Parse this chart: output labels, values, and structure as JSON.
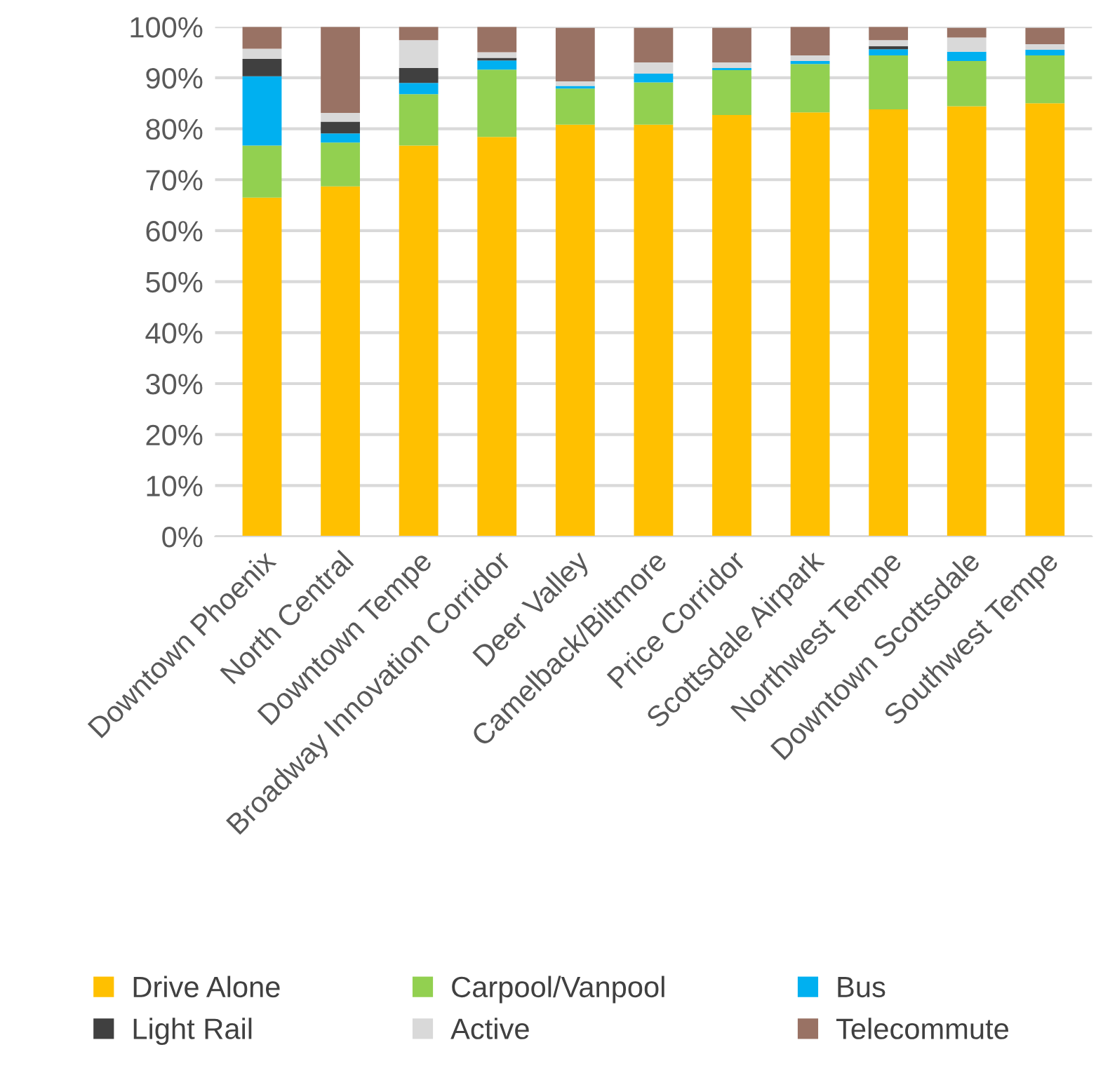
{
  "chart_data": {
    "type": "bar",
    "stacked": true,
    "categories": [
      "Downtown Phoenix",
      "North Central",
      "Downtown Tempe",
      "Broadway Innovation Corridor",
      "Deer Valley",
      "Camelback/Biltmore",
      "Price Corridor",
      "Scottsdale Airpark",
      "Northwest Tempe",
      "Downtown Scottsdale",
      "Southwest Tempe"
    ],
    "series": [
      {
        "name": "Drive Alone",
        "color": "#ffc000",
        "values": [
          66.5,
          68.7,
          76.7,
          78.4,
          80.8,
          80.8,
          82.7,
          83.2,
          83.8,
          84.4,
          85.0
        ]
      },
      {
        "name": "Carpool/Vanpool",
        "color": "#92d050",
        "values": [
          10.2,
          8.6,
          10.1,
          13.2,
          7.1,
          8.3,
          8.8,
          9.5,
          10.6,
          8.9,
          9.4
        ]
      },
      {
        "name": "Bus",
        "color": "#00b0f0",
        "values": [
          13.6,
          1.8,
          2.2,
          1.8,
          0.5,
          1.7,
          0.4,
          0.6,
          1.2,
          1.8,
          1.1
        ]
      },
      {
        "name": "Light Rail",
        "color": "#404040",
        "values": [
          3.4,
          2.3,
          2.9,
          0.5,
          null,
          null,
          null,
          null,
          0.6,
          null,
          null
        ]
      },
      {
        "name": "Active",
        "color": "#d9d9d9",
        "values": [
          2.0,
          1.7,
          5.5,
          1.1,
          0.9,
          2.2,
          1.1,
          1.1,
          1.2,
          2.8,
          1.1
        ]
      },
      {
        "name": "Telecommute",
        "color": "#997264",
        "values": [
          4.3,
          16.9,
          2.6,
          5.0,
          10.5,
          6.8,
          6.8,
          5.6,
          2.6,
          1.9,
          3.2
        ]
      }
    ],
    "ylim": [
      0,
      100
    ],
    "yticks": [
      {
        "value": 0,
        "label": "0%"
      },
      {
        "value": 10,
        "label": "10%"
      },
      {
        "value": 20,
        "label": "20%"
      },
      {
        "value": 30,
        "label": "30%"
      },
      {
        "value": 40,
        "label": "40%"
      },
      {
        "value": 50,
        "label": "50%"
      },
      {
        "value": 60,
        "label": "60%"
      },
      {
        "value": 70,
        "label": "70%"
      },
      {
        "value": 80,
        "label": "80%"
      },
      {
        "value": 90,
        "label": "90%"
      },
      {
        "value": 100,
        "label": "100%"
      }
    ],
    "grid": "y",
    "legend": "bottom"
  }
}
